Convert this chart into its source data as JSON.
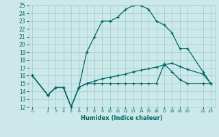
{
  "xlabel": "Humidex (Indice chaleur)",
  "bg_color": "#cce8e8",
  "line_color": "#006666",
  "grid_color": "#99cccc",
  "ylim": [
    12,
    25
  ],
  "xlim": [
    -0.5,
    23.5
  ],
  "yticks": [
    12,
    13,
    14,
    15,
    16,
    17,
    18,
    19,
    20,
    21,
    22,
    23,
    24,
    25
  ],
  "xtick_positions": [
    0,
    2,
    3,
    4,
    5,
    6,
    7,
    8,
    9,
    10,
    11,
    12,
    13,
    14,
    15,
    16,
    17,
    18,
    19,
    20,
    22,
    23
  ],
  "xtick_labels": [
    "0",
    "2",
    "3",
    "4",
    "5",
    "6",
    "7",
    "8",
    "9",
    "10",
    "11",
    "12",
    "13",
    "14",
    "15",
    "16",
    "17",
    "18",
    "19",
    "20",
    "22",
    "23"
  ],
  "line1_x": [
    0,
    2,
    3,
    4,
    5,
    6,
    7,
    8,
    9,
    10,
    11,
    12,
    13,
    14,
    15,
    16,
    17,
    18,
    19,
    20,
    22,
    23
  ],
  "line1_y": [
    16,
    13.5,
    14.5,
    14.5,
    12,
    14.5,
    19,
    21,
    23,
    23,
    23.5,
    24.5,
    25,
    25,
    24.5,
    23,
    22.5,
    21.5,
    19.5,
    19.5,
    16.5,
    15
  ],
  "line2_x": [
    0,
    2,
    3,
    4,
    5,
    6,
    7,
    8,
    9,
    10,
    11,
    12,
    13,
    14,
    15,
    16,
    17,
    18,
    19,
    20,
    22,
    23
  ],
  "line2_y": [
    16,
    13.5,
    14.5,
    14.5,
    12,
    14.5,
    15.0,
    15.0,
    15.0,
    15.0,
    15.0,
    15.0,
    15.0,
    15.0,
    15.0,
    15.0,
    17.5,
    16.5,
    15.5,
    15.0,
    15.0,
    15.0
  ],
  "line3_x": [
    0,
    2,
    3,
    4,
    5,
    6,
    7,
    8,
    9,
    10,
    11,
    12,
    13,
    14,
    15,
    16,
    17,
    18,
    19,
    20,
    22,
    23
  ],
  "line3_y": [
    16,
    13.5,
    14.5,
    14.5,
    12,
    14.5,
    15.0,
    15.3,
    15.6,
    15.8,
    16.0,
    16.2,
    16.5,
    16.7,
    16.9,
    17.1,
    17.4,
    17.6,
    17.2,
    16.8,
    16.2,
    15.0
  ]
}
